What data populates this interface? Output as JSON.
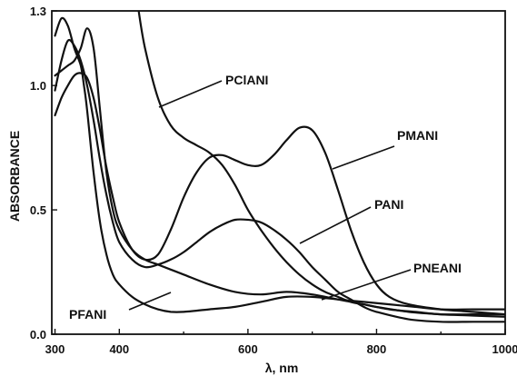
{
  "chart_data": {
    "type": "line",
    "title": "",
    "xlabel": "λ, nm",
    "ylabel": "ABSORBANCE",
    "xlim": [
      295,
      1000
    ],
    "ylim": [
      0,
      1.3
    ],
    "xticks": [
      {
        "value": 300,
        "label": "300"
      },
      {
        "value": 400,
        "label": "400"
      },
      {
        "value": 600,
        "label": "600"
      },
      {
        "value": 800,
        "label": "800"
      },
      {
        "value": 1000,
        "label": "1000"
      }
    ],
    "yticks": [
      {
        "value": 0,
        "label": "0.0"
      },
      {
        "value": 0.5,
        "label": "0.5"
      },
      {
        "value": 1.0,
        "label": "1.0"
      },
      {
        "value": 1.3,
        "label": "1.3"
      }
    ],
    "grid": false,
    "series": [
      {
        "name": "PClANI",
        "x": [
          430,
          440,
          460,
          480,
          500,
          520,
          540,
          560,
          580,
          600,
          620,
          640,
          660,
          680,
          700,
          720,
          740,
          760,
          780,
          800,
          850,
          900,
          950,
          1000
        ],
        "y": [
          1.3,
          1.15,
          0.95,
          0.84,
          0.79,
          0.76,
          0.73,
          0.68,
          0.6,
          0.5,
          0.42,
          0.35,
          0.29,
          0.24,
          0.2,
          0.17,
          0.15,
          0.13,
          0.12,
          0.11,
          0.09,
          0.08,
          0.075,
          0.07
        ]
      },
      {
        "name": "PMANI",
        "x": [
          300,
          310,
          320,
          330,
          340,
          350,
          360,
          370,
          380,
          390,
          400,
          420,
          440,
          460,
          480,
          500,
          520,
          540,
          560,
          580,
          600,
          620,
          640,
          660,
          680,
          700,
          720,
          740,
          760,
          780,
          800,
          820,
          850,
          900,
          950,
          1000
        ],
        "y": [
          0.88,
          0.95,
          1.0,
          1.04,
          1.05,
          1.03,
          0.95,
          0.82,
          0.67,
          0.55,
          0.45,
          0.34,
          0.3,
          0.32,
          0.42,
          0.55,
          0.65,
          0.71,
          0.72,
          0.7,
          0.68,
          0.68,
          0.72,
          0.78,
          0.83,
          0.82,
          0.73,
          0.58,
          0.42,
          0.29,
          0.2,
          0.15,
          0.12,
          0.1,
          0.09,
          0.08
        ]
      },
      {
        "name": "PANI",
        "x": [
          300,
          310,
          320,
          330,
          340,
          350,
          360,
          370,
          380,
          390,
          400,
          420,
          440,
          460,
          480,
          500,
          520,
          540,
          560,
          580,
          600,
          620,
          640,
          660,
          680,
          700,
          720,
          740,
          760,
          780,
          800,
          850,
          900,
          950,
          1000
        ],
        "y": [
          0.98,
          1.1,
          1.18,
          1.16,
          1.1,
          1.0,
          0.86,
          0.7,
          0.56,
          0.45,
          0.37,
          0.3,
          0.27,
          0.28,
          0.3,
          0.33,
          0.37,
          0.41,
          0.44,
          0.46,
          0.46,
          0.45,
          0.42,
          0.38,
          0.33,
          0.27,
          0.22,
          0.17,
          0.14,
          0.11,
          0.09,
          0.06,
          0.05,
          0.05,
          0.05
        ]
      },
      {
        "name": "PNEANI",
        "x": [
          300,
          310,
          320,
          330,
          340,
          350,
          360,
          370,
          380,
          390,
          400,
          420,
          440,
          460,
          480,
          500,
          540,
          580,
          620,
          660,
          700,
          740,
          780,
          820,
          860,
          900,
          950,
          1000
        ],
        "y": [
          1.04,
          1.06,
          1.08,
          1.1,
          1.15,
          1.23,
          1.15,
          0.9,
          0.65,
          0.5,
          0.42,
          0.34,
          0.3,
          0.28,
          0.26,
          0.24,
          0.2,
          0.17,
          0.16,
          0.17,
          0.16,
          0.14,
          0.12,
          0.1,
          0.09,
          0.08,
          0.08,
          0.08
        ]
      },
      {
        "name": "PFANI",
        "x": [
          300,
          310,
          320,
          330,
          340,
          345,
          350,
          360,
          370,
          380,
          390,
          400,
          420,
          440,
          460,
          480,
          500,
          540,
          580,
          620,
          660,
          700,
          740,
          780,
          820,
          860,
          900,
          950,
          1000
        ],
        "y": [
          1.2,
          1.27,
          1.24,
          1.15,
          1.08,
          1.0,
          0.9,
          0.65,
          0.45,
          0.32,
          0.24,
          0.2,
          0.15,
          0.12,
          0.1,
          0.09,
          0.09,
          0.1,
          0.11,
          0.13,
          0.15,
          0.15,
          0.14,
          0.13,
          0.12,
          0.11,
          0.1,
          0.1,
          0.1
        ]
      }
    ],
    "annotations": [
      {
        "label": "PClANI",
        "series": "PClANI"
      },
      {
        "label": "PMANI",
        "series": "PMANI"
      },
      {
        "label": "PANI",
        "series": "PANI"
      },
      {
        "label": "PNEANI",
        "series": "PNEANI"
      },
      {
        "label": "PFANI",
        "series": "PFANI"
      }
    ]
  }
}
